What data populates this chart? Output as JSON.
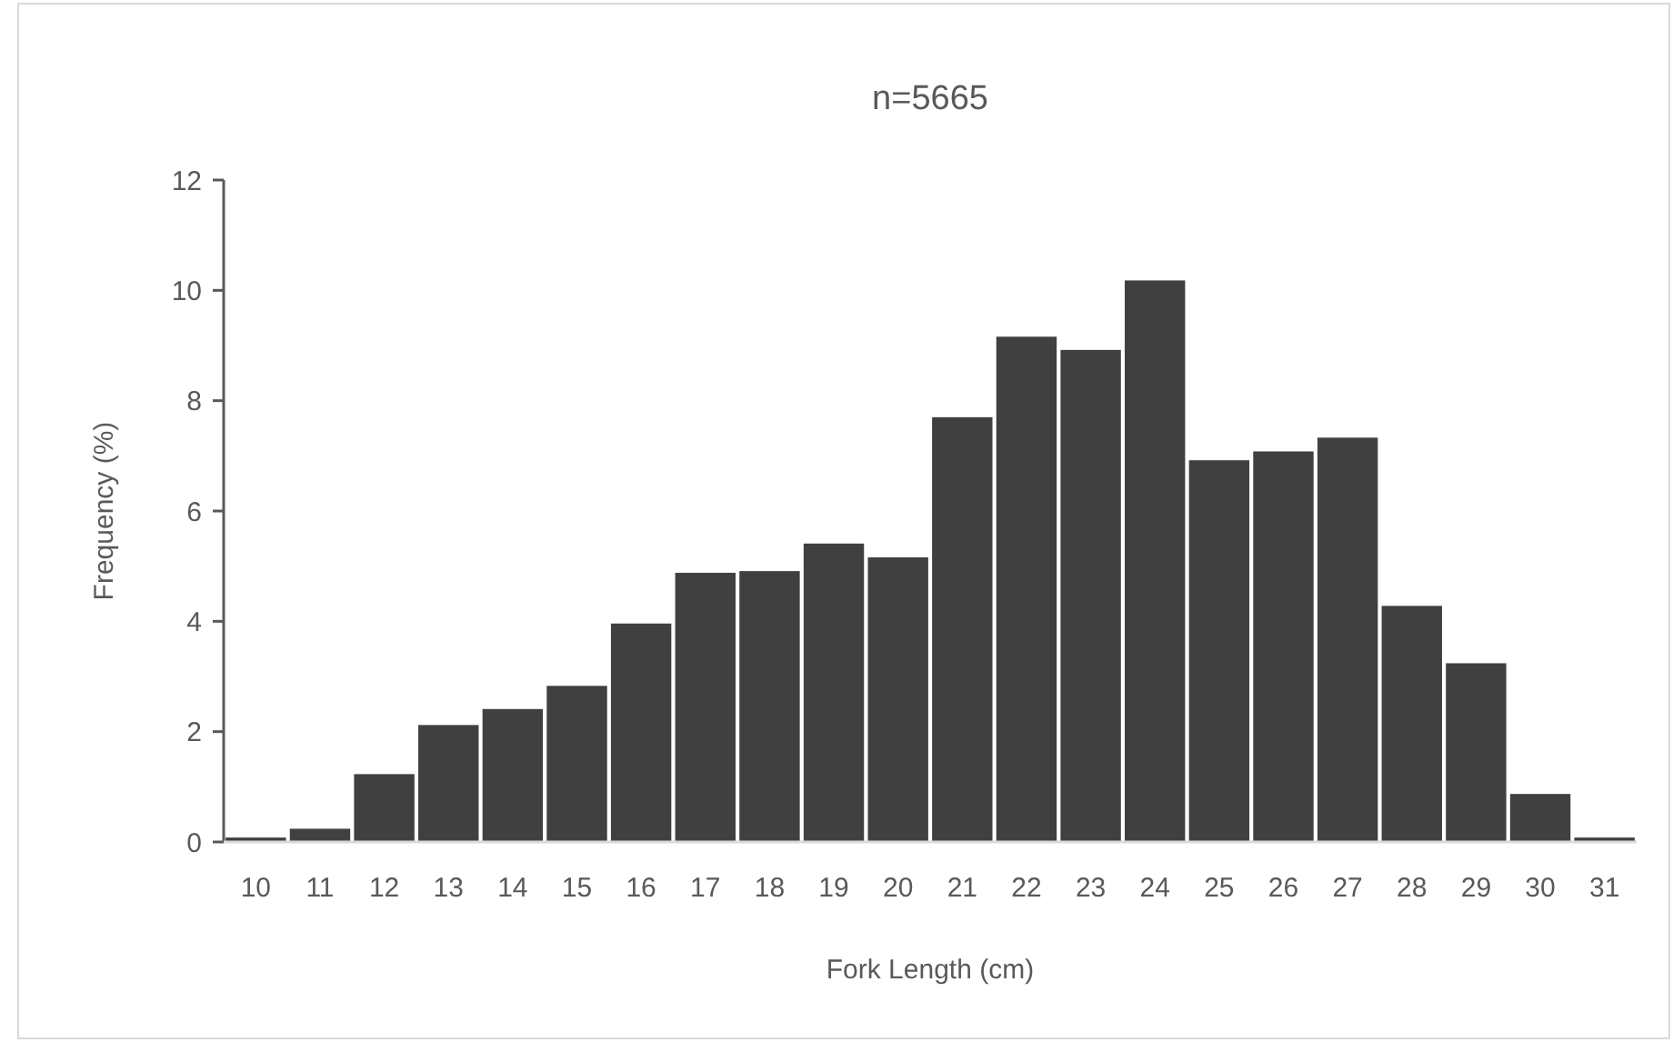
{
  "chart_data": {
    "type": "bar",
    "title": "n=5665",
    "xlabel": "Fork Length (cm)",
    "ylabel": "Frequency (%)",
    "categories": [
      "10",
      "11",
      "12",
      "13",
      "14",
      "15",
      "16",
      "17",
      "18",
      "19",
      "20",
      "21",
      "22",
      "23",
      "24",
      "25",
      "26",
      "27",
      "28",
      "29",
      "30",
      "31"
    ],
    "values": [
      0.08,
      0.24,
      1.23,
      2.12,
      2.41,
      2.83,
      3.96,
      4.88,
      4.91,
      5.41,
      5.16,
      7.7,
      9.16,
      8.92,
      10.18,
      6.92,
      7.08,
      7.33,
      4.28,
      3.24,
      0.87,
      0.08
    ],
    "color": "#404040",
    "ylim": [
      0,
      12
    ],
    "yticks": [
      0,
      2,
      4,
      6,
      8,
      10,
      12
    ],
    "grid": false
  }
}
